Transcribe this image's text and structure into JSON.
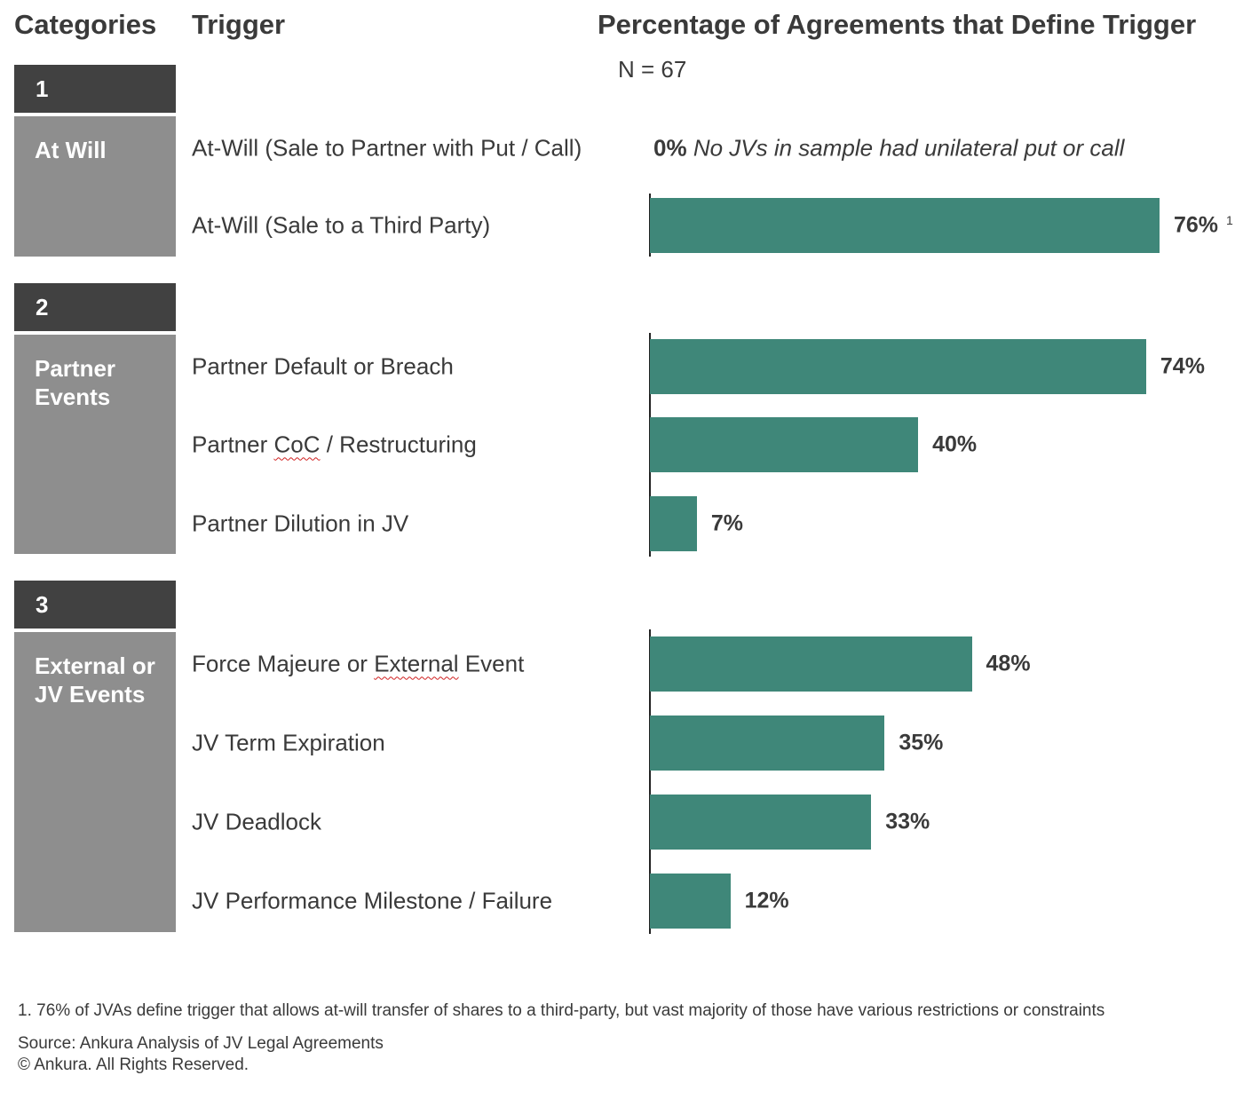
{
  "headers": {
    "categories": "Categories",
    "trigger": "Trigger",
    "percentage": "Percentage of Agreements that Define Trigger",
    "n_label": "N = 67"
  },
  "groups": [
    {
      "number": "1",
      "name": "At Will"
    },
    {
      "number": "2",
      "name": "Partner\nEvents"
    },
    {
      "number": "3",
      "name": "External or\nJV Events"
    }
  ],
  "zero_note": {
    "value_text": "0%",
    "text": "No JVs in sample had unilateral put or call"
  },
  "footnote_marker": "1",
  "chart_data": {
    "type": "bar",
    "orientation": "horizontal",
    "title": "Percentage of Agreements that Define Trigger",
    "subtitle": "N = 67",
    "categories": [
      "At-Will (Sale to Partner with Put / Call)",
      "At-Will (Sale to a Third Party)",
      "Partner Default or Breach",
      "Partner CoC / Restructuring",
      "Partner Dilution in JV",
      "Force Majeure or External Event",
      "JV Term Expiration",
      "JV Deadlock",
      "JV Performance Milestone / Failure"
    ],
    "group_of_category": [
      0,
      0,
      1,
      1,
      1,
      2,
      2,
      2,
      2
    ],
    "values": [
      0,
      76,
      74,
      40,
      7,
      48,
      35,
      33,
      12
    ],
    "value_labels": [
      "0%",
      "76%",
      "74%",
      "40%",
      "7%",
      "48%",
      "35%",
      "33%",
      "12%"
    ],
    "unit": "%",
    "xlim": [
      0,
      100
    ],
    "grid": false,
    "bar_color": "#3f8779"
  },
  "footer": {
    "footnote": "1. 76% of JVAs define trigger that allows at-will transfer of shares to a third-party, but vast majority of those have various restrictions or constraints",
    "source": "Source: Ankura Analysis of JV Legal Agreements",
    "copyright": "© Ankura. All Rights Reserved."
  },
  "colors": {
    "number_box": "#414141",
    "category_box": "#8e8e8e",
    "bar": "#3f8779",
    "text": "#3a3a3a"
  }
}
